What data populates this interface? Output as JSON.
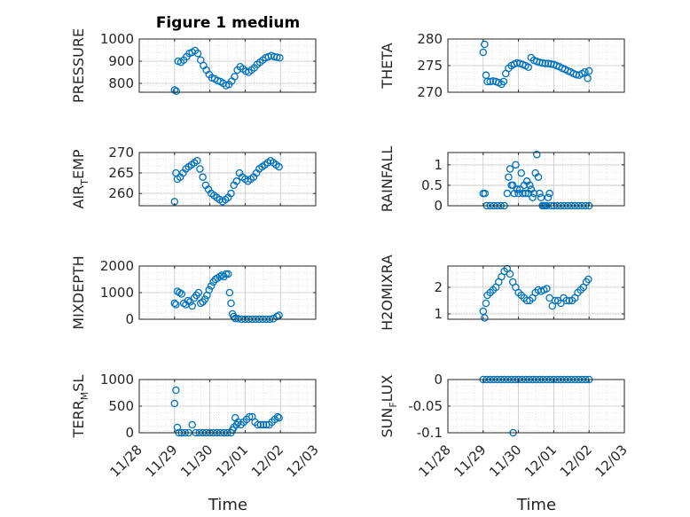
{
  "figure_title": "Figure 1 medium",
  "xlabel": "Time",
  "marker_color": "#0072bd",
  "date_ticks": [
    "11/28",
    "11/29",
    "11/30",
    "12/01",
    "12/02",
    "12/03"
  ],
  "chart_data": [
    {
      "type": "scatter",
      "id": "pressure",
      "ylabel": "PRESSURE",
      "ylim": [
        760,
        1000
      ],
      "yticks": [
        800,
        900,
        1000
      ],
      "x": [
        1.0,
        1.05,
        1.1,
        1.18,
        1.26,
        1.34,
        1.42,
        1.5,
        1.58,
        1.66,
        1.74,
        1.82,
        1.9,
        1.98,
        2.06,
        2.14,
        2.22,
        2.3,
        2.38,
        2.46,
        2.54,
        2.62,
        2.7,
        2.78,
        2.86,
        2.94,
        3.02,
        3.1,
        3.18,
        3.26,
        3.34,
        3.42,
        3.5,
        3.58,
        3.66,
        3.74,
        3.82,
        3.9,
        3.98
      ],
      "y": [
        770,
        765,
        900,
        895,
        905,
        920,
        935,
        940,
        948,
        935,
        905,
        880,
        860,
        840,
        825,
        820,
        812,
        808,
        800,
        790,
        795,
        810,
        830,
        860,
        875,
        865,
        855,
        850,
        860,
        870,
        885,
        895,
        905,
        915,
        920,
        925,
        920,
        918,
        915
      ]
    },
    {
      "type": "scatter",
      "id": "theta",
      "ylabel": "THETA",
      "ylim": [
        270,
        280
      ],
      "yticks": [
        270,
        275,
        280
      ],
      "x": [
        1.0,
        1.04,
        1.08,
        1.12,
        1.2,
        1.28,
        1.36,
        1.44,
        1.52,
        1.58,
        1.64,
        1.72,
        1.8,
        1.88,
        1.96,
        2.04,
        2.12,
        2.2,
        2.28,
        2.36,
        2.44,
        2.52,
        2.6,
        2.68,
        2.76,
        2.84,
        2.92,
        3.0,
        3.08,
        3.16,
        3.24,
        3.32,
        3.4,
        3.48,
        3.56,
        3.64,
        3.72,
        3.8,
        3.88,
        3.96,
        4.0
      ],
      "y": [
        277.5,
        279,
        273.2,
        272,
        272,
        272.1,
        272,
        271.8,
        271.5,
        272,
        273.5,
        274.5,
        275,
        275.3,
        275.5,
        275.4,
        275.2,
        275,
        274.7,
        276.5,
        276,
        275.8,
        275.6,
        275.5,
        275.4,
        275.4,
        275.3,
        275.2,
        275,
        274.8,
        274.5,
        274.3,
        274,
        273.8,
        273.5,
        273.3,
        273.2,
        273.5,
        273.8,
        272.6,
        274
      ]
    },
    {
      "type": "scatter",
      "id": "air_temp",
      "ylabel": "AIR_TEMP",
      "ylim": [
        257,
        270
      ],
      "yticks": [
        260,
        265,
        270
      ],
      "x": [
        1.0,
        1.04,
        1.08,
        1.16,
        1.24,
        1.32,
        1.4,
        1.48,
        1.56,
        1.64,
        1.72,
        1.8,
        1.88,
        1.96,
        2.04,
        2.12,
        2.2,
        2.28,
        2.36,
        2.44,
        2.52,
        2.6,
        2.68,
        2.76,
        2.84,
        2.92,
        3.0,
        3.08,
        3.16,
        3.24,
        3.32,
        3.4,
        3.48,
        3.56,
        3.64,
        3.72,
        3.8,
        3.88,
        3.96
      ],
      "y": [
        258,
        265,
        263.5,
        264,
        265,
        266,
        266.5,
        267,
        267.5,
        268,
        266,
        264,
        262,
        261,
        260,
        259.5,
        259,
        258.5,
        258,
        258.5,
        259,
        260,
        262,
        263,
        265,
        264,
        263.5,
        263,
        263.5,
        264,
        265,
        266,
        266.5,
        267,
        267.5,
        268,
        267.5,
        267,
        266.5
      ]
    },
    {
      "type": "scatter",
      "id": "rainfall",
      "ylabel": "RAINFALL",
      "ylim": [
        0,
        1.3
      ],
      "yticks": [
        0,
        0.5,
        1
      ],
      "x": [
        1.0,
        1.05,
        1.1,
        1.2,
        1.3,
        1.4,
        1.5,
        1.6,
        1.68,
        1.72,
        1.76,
        1.8,
        1.84,
        1.88,
        1.92,
        1.96,
        2.0,
        2.04,
        2.08,
        2.12,
        2.16,
        2.2,
        2.24,
        2.28,
        2.32,
        2.36,
        2.4,
        2.44,
        2.48,
        2.52,
        2.56,
        2.6,
        2.64,
        2.68,
        2.72,
        2.76,
        2.8,
        2.84,
        2.88,
        2.92,
        3.0,
        3.1,
        3.2,
        3.3,
        3.4,
        3.5,
        3.6,
        3.7,
        3.8,
        3.9,
        4.0
      ],
      "y": [
        0.3,
        0.3,
        0,
        0,
        0,
        0,
        0,
        0,
        0.3,
        0.7,
        0.9,
        0.5,
        0.5,
        0.3,
        1.0,
        0.4,
        0.3,
        0.4,
        0.8,
        0.3,
        0.5,
        0.3,
        0.6,
        0.3,
        0.5,
        0.4,
        0.2,
        0.3,
        0.8,
        1.25,
        0.7,
        0.3,
        0.2,
        0,
        0,
        0,
        0,
        0.2,
        0.3,
        0,
        0,
        0,
        0,
        0,
        0,
        0,
        0,
        0,
        0,
        0,
        0
      ]
    },
    {
      "type": "scatter",
      "id": "mixdepth",
      "ylabel": "MIXDEPTH",
      "ylim": [
        0,
        2000
      ],
      "yticks": [
        0,
        1000,
        2000
      ],
      "x": [
        1.0,
        1.04,
        1.08,
        1.14,
        1.2,
        1.26,
        1.32,
        1.38,
        1.44,
        1.5,
        1.56,
        1.62,
        1.68,
        1.74,
        1.8,
        1.86,
        1.92,
        1.98,
        2.04,
        2.1,
        2.16,
        2.22,
        2.28,
        2.34,
        2.4,
        2.46,
        2.52,
        2.56,
        2.6,
        2.64,
        2.68,
        2.72,
        2.8,
        2.9,
        3.0,
        3.1,
        3.2,
        3.3,
        3.4,
        3.5,
        3.6,
        3.7,
        3.8,
        3.9,
        3.96
      ],
      "y": [
        600,
        550,
        1050,
        1000,
        950,
        600,
        550,
        700,
        650,
        500,
        800,
        900,
        1000,
        600,
        650,
        750,
        900,
        1100,
        1250,
        1400,
        1500,
        1550,
        1600,
        1650,
        1600,
        1700,
        1700,
        1000,
        600,
        200,
        100,
        30,
        20,
        0,
        0,
        0,
        0,
        0,
        0,
        0,
        0,
        0,
        20,
        100,
        150
      ]
    },
    {
      "type": "scatter",
      "id": "h2omixra",
      "ylabel": "H2OMIXRA",
      "ylim": [
        0.8,
        2.8
      ],
      "yticks": [
        1,
        2
      ],
      "x": [
        1.0,
        1.04,
        1.08,
        1.12,
        1.2,
        1.28,
        1.36,
        1.44,
        1.52,
        1.6,
        1.68,
        1.76,
        1.84,
        1.92,
        2.0,
        2.08,
        2.16,
        2.24,
        2.32,
        2.4,
        2.48,
        2.56,
        2.64,
        2.72,
        2.8,
        2.88,
        2.96,
        3.04,
        3.12,
        3.2,
        3.28,
        3.36,
        3.44,
        3.52,
        3.6,
        3.68,
        3.76,
        3.84,
        3.92,
        3.98
      ],
      "y": [
        1.1,
        0.85,
        1.4,
        1.7,
        1.8,
        1.9,
        2.0,
        2.2,
        2.4,
        2.6,
        2.7,
        2.5,
        2.2,
        2.0,
        1.8,
        1.7,
        1.6,
        1.5,
        1.5,
        1.6,
        1.8,
        1.9,
        1.85,
        1.9,
        1.95,
        1.6,
        1.3,
        1.5,
        1.5,
        1.4,
        1.6,
        1.5,
        1.5,
        1.5,
        1.6,
        1.8,
        1.9,
        2.0,
        2.2,
        2.3
      ]
    },
    {
      "type": "scatter",
      "id": "terr_msl",
      "ylabel": "TERR_MSL",
      "ylim": [
        0,
        1000
      ],
      "yticks": [
        0,
        500,
        1000
      ],
      "x": [
        1.0,
        1.04,
        1.08,
        1.12,
        1.2,
        1.3,
        1.4,
        1.5,
        1.6,
        1.7,
        1.8,
        1.9,
        2.0,
        2.1,
        2.2,
        2.3,
        2.4,
        2.5,
        2.6,
        2.64,
        2.68,
        2.72,
        2.76,
        2.8,
        2.88,
        2.96,
        3.04,
        3.12,
        3.2,
        3.28,
        3.36,
        3.44,
        3.52,
        3.6,
        3.68,
        3.76,
        3.84,
        3.92,
        3.96
      ],
      "y": [
        550,
        800,
        100,
        0,
        0,
        0,
        0,
        150,
        0,
        0,
        0,
        0,
        0,
        0,
        0,
        0,
        0,
        0,
        0,
        50,
        100,
        280,
        150,
        200,
        150,
        200,
        250,
        300,
        300,
        200,
        150,
        150,
        150,
        150,
        150,
        200,
        250,
        300,
        280
      ]
    },
    {
      "type": "scatter",
      "id": "sun_flux",
      "ylabel": "SUN_FLUX",
      "ylim": [
        -0.1,
        0
      ],
      "yticks": [
        -0.1,
        -0.05,
        0
      ],
      "x": [
        1.0,
        1.1,
        1.2,
        1.3,
        1.4,
        1.5,
        1.6,
        1.7,
        1.8,
        1.9,
        2.0,
        2.1,
        2.2,
        2.3,
        2.4,
        2.5,
        2.6,
        2.7,
        2.8,
        2.9,
        3.0,
        3.1,
        3.2,
        3.3,
        3.4,
        3.5,
        3.6,
        3.7,
        3.8,
        3.9,
        4.0,
        1.85
      ],
      "y": [
        0,
        0,
        0,
        0,
        0,
        0,
        0,
        0,
        0,
        0,
        0,
        0,
        0,
        0,
        0,
        0,
        0,
        0,
        0,
        0,
        0,
        0,
        0,
        0,
        0,
        0,
        0,
        0,
        0,
        0,
        0,
        -0.1
      ]
    }
  ]
}
